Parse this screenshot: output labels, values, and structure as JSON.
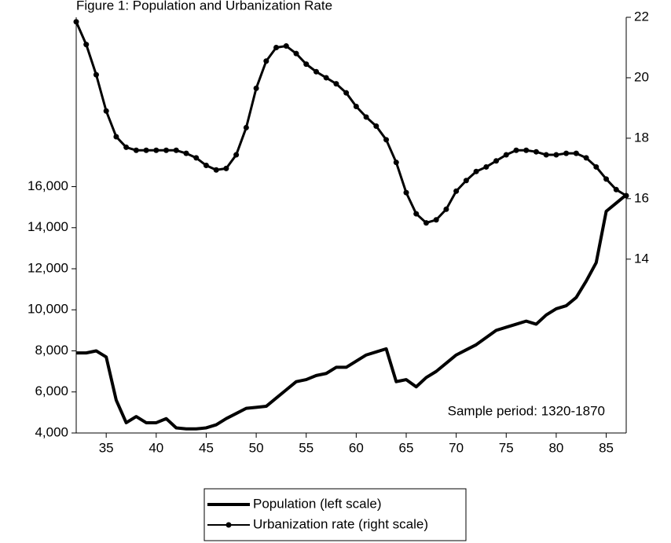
{
  "chart_data": {
    "type": "line",
    "title": "Figure 1: Population and Urbanization Rate",
    "annotation": "Sample period: 1320-1870",
    "x": [
      32,
      33,
      34,
      35,
      36,
      37,
      38,
      39,
      40,
      41,
      42,
      43,
      44,
      45,
      46,
      47,
      48,
      49,
      50,
      51,
      52,
      53,
      54,
      55,
      56,
      57,
      58,
      59,
      60,
      61,
      62,
      63,
      64,
      65,
      66,
      67,
      68,
      69,
      70,
      71,
      72,
      73,
      74,
      75,
      76,
      77,
      78,
      79,
      80,
      81,
      82,
      83,
      84,
      85,
      86,
      87
    ],
    "xlim": [
      32,
      87
    ],
    "xticks": [
      35,
      40,
      45,
      50,
      55,
      60,
      65,
      70,
      75,
      80,
      85
    ],
    "ylim": [
      4000,
      24250
    ],
    "yticks": [
      {
        "value": 4000,
        "label": "4,000"
      },
      {
        "value": 6000,
        "label": "6,000"
      },
      {
        "value": 8000,
        "label": "8,000"
      },
      {
        "value": 10000,
        "label": "10,000"
      },
      {
        "value": 12000,
        "label": "12,000"
      },
      {
        "value": 14000,
        "label": "14,000"
      },
      {
        "value": 16000,
        "label": "16,000"
      }
    ],
    "y2lim": [
      8.25,
      22
    ],
    "y2ticks": [
      14,
      16,
      18,
      20,
      22
    ],
    "series": [
      {
        "name": "Population (left scale)",
        "color": "#000000",
        "axis": "y",
        "values": [
          7900,
          7900,
          8000,
          7700,
          5600,
          4500,
          4800,
          4500,
          4500,
          4700,
          4250,
          4200,
          4200,
          4250,
          4400,
          4700,
          4950,
          5200,
          5250,
          5300,
          5700,
          6100,
          6500,
          6600,
          6800,
          6900,
          7200,
          7200,
          7500,
          7800,
          7950,
          8100,
          6500,
          6600,
          6250,
          6700,
          7000,
          7400,
          7800,
          8050,
          8300,
          8650,
          9000,
          9150,
          9300,
          9450,
          9300,
          9750,
          10050,
          10200,
          10600,
          11400,
          12300,
          14800,
          15200,
          15600
        ]
      },
      {
        "name": "Urbanization rate (right scale)",
        "color": "#000000",
        "axis": "y2",
        "values": [
          21.85,
          21.1,
          20.1,
          18.9,
          18.05,
          17.7,
          17.6,
          17.6,
          17.6,
          17.6,
          17.6,
          17.5,
          17.35,
          17.1,
          16.95,
          17.0,
          17.45,
          18.35,
          19.65,
          20.55,
          21.0,
          21.05,
          20.8,
          20.45,
          20.2,
          20.0,
          19.8,
          19.5,
          19.05,
          18.7,
          18.4,
          17.95,
          17.2,
          16.2,
          15.5,
          15.2,
          15.3,
          15.65,
          16.25,
          16.6,
          16.9,
          17.05,
          17.25,
          17.45,
          17.6,
          17.6,
          17.55,
          17.45,
          17.45,
          17.5,
          17.5,
          17.35,
          17.05,
          16.65,
          16.3,
          16.1
        ]
      }
    ]
  }
}
